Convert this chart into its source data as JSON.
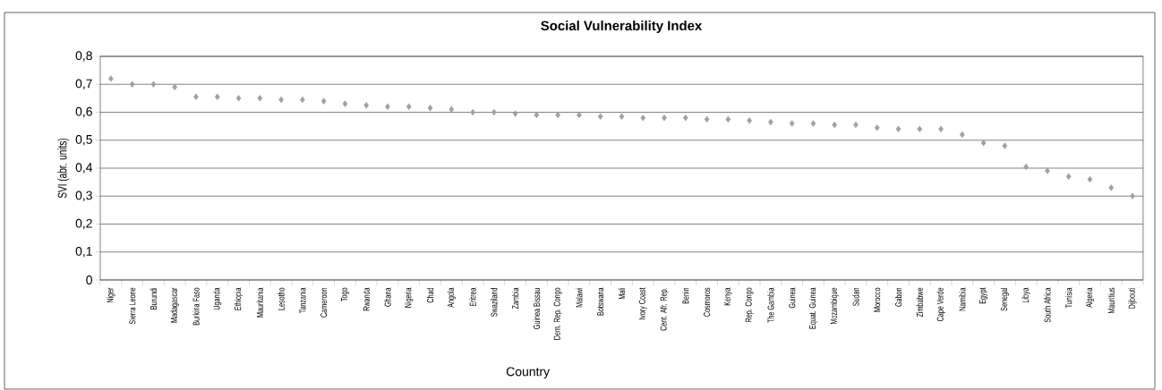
{
  "chart_data": {
    "type": "scatter",
    "title": "Social Vulnerability Index",
    "xlabel": "Country",
    "ylabel": "SVI (abr. units)",
    "categories": [
      "Niger",
      "Sierra Leone",
      "Burundi",
      "Madagascar",
      "Burkina Faso",
      "Uganda",
      "Ethiopia",
      "Mauritania",
      "Lesotho",
      "Tanzania",
      "Cameroon",
      "Togo",
      "Rwanda",
      "Ghana",
      "Nigeria",
      "Chad",
      "Angola",
      "Eritrea",
      "Swaziland",
      "Zambia",
      "Guinea Bissau",
      "Dem. Rep. Congo",
      "Malawi",
      "Botswana",
      "Mali",
      "Ivory Coast",
      "Cent. Afr. Rep.",
      "Benin",
      "Cosmoros",
      "Kenya",
      "Rep. Congo",
      "The Gambia",
      "Guinea",
      "Equat. Guinea",
      "Mozambique",
      "Sudan",
      "Morocco",
      "Gabon",
      "Zimbabwe",
      "Cape Verde",
      "Namibia",
      "Egypt",
      "Senegal",
      "Libya",
      "South Africa",
      "Tunisia",
      "Algeria",
      "Mauritius",
      "Dijbouti"
    ],
    "values": [
      0.72,
      0.7,
      0.7,
      0.69,
      0.655,
      0.655,
      0.65,
      0.65,
      0.645,
      0.645,
      0.64,
      0.63,
      0.625,
      0.62,
      0.62,
      0.615,
      0.61,
      0.6,
      0.6,
      0.595,
      0.59,
      0.59,
      0.59,
      0.585,
      0.585,
      0.58,
      0.58,
      0.58,
      0.575,
      0.575,
      0.57,
      0.565,
      0.56,
      0.56,
      0.555,
      0.555,
      0.545,
      0.54,
      0.54,
      0.54,
      0.52,
      0.49,
      0.48,
      0.405,
      0.39,
      0.37,
      0.36,
      0.33,
      0.3
    ],
    "color": "#a0a0a0",
    "marker": "diamond",
    "ylim": [
      0,
      0.8
    ],
    "yticks": [
      0,
      {
        "value": 0.1,
        "label": "0,1"
      },
      {
        "value": 0.2,
        "label": "0,2"
      },
      {
        "value": 0.3,
        "label": "0,3"
      },
      {
        "value": 0.4,
        "label": "0,4"
      },
      {
        "value": 0.5,
        "label": "0,5"
      },
      {
        "value": 0.6,
        "label": "0,6"
      },
      {
        "value": 0.7,
        "label": "0,7"
      },
      {
        "value": 0.8,
        "label": "0,8"
      }
    ],
    "grid": "y"
  }
}
